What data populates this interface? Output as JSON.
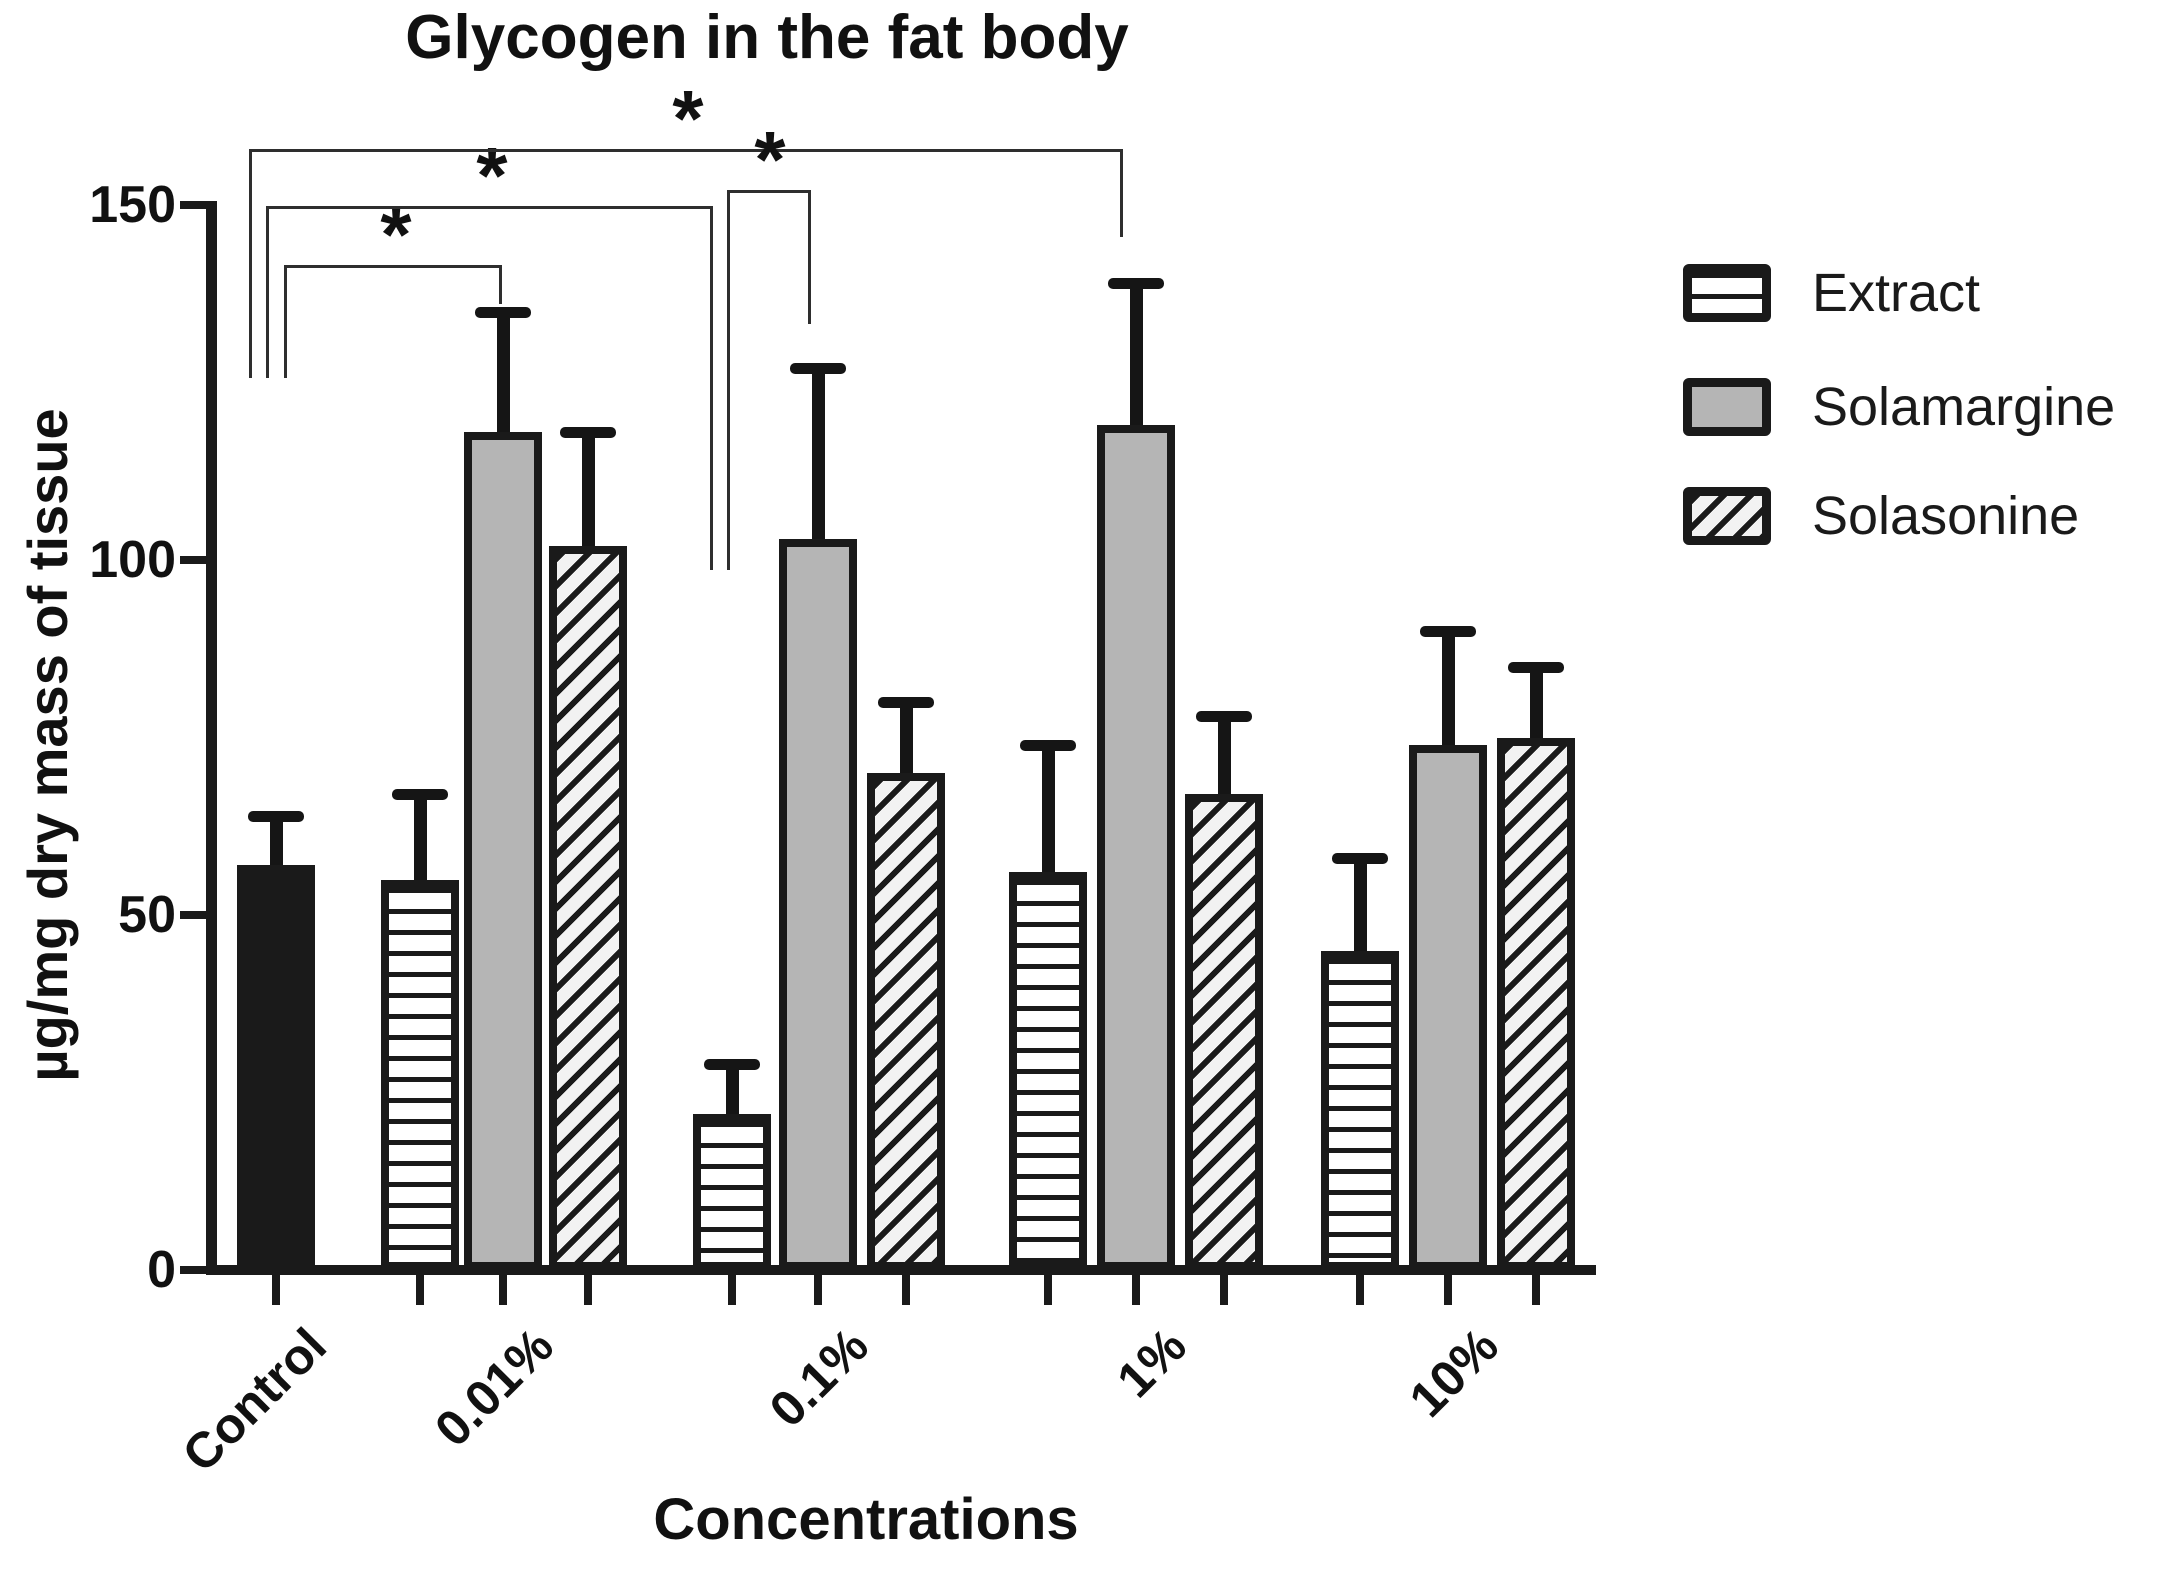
{
  "chart_data": {
    "type": "bar",
    "title": "Glycogen in the fat body",
    "xlabel": "Concentrations",
    "ylabel": "µg/mg dry mass of tissue",
    "ylim": [
      0,
      150
    ],
    "grid": false,
    "legend_position": "right",
    "yticks": [
      {
        "value": 150,
        "label": "150"
      },
      {
        "value": 100,
        "label": "100"
      },
      {
        "value": 50,
        "label": "50"
      },
      {
        "value": 0,
        "label": "0"
      }
    ],
    "categories": [
      "Control",
      "0.01%",
      "0.1%",
      "1%",
      "10%"
    ],
    "control": {
      "label": "Control",
      "value": 57,
      "err_top": 64,
      "pattern": "solid-black"
    },
    "series": [
      {
        "name": "Extract",
        "pattern": "horizontal-lines",
        "values": [
          55,
          22,
          56,
          45
        ],
        "err_top": [
          67,
          29,
          74,
          58
        ]
      },
      {
        "name": "Solamargine",
        "pattern": "solid-gray",
        "values": [
          118,
          103,
          119,
          74
        ],
        "err_top": [
          135,
          127,
          139,
          90
        ]
      },
      {
        "name": "Solasonine",
        "pattern": "diagonal-hatch",
        "values": [
          102,
          70,
          67,
          75
        ],
        "err_top": [
          118,
          80,
          78,
          85
        ]
      }
    ],
    "significance": [
      {
        "label": "*",
        "between": [
          "Control",
          "0.01% Solamargine"
        ]
      },
      {
        "label": "*",
        "between": [
          "Control",
          "0.1% Extract"
        ]
      },
      {
        "label": "*",
        "between": [
          "Control",
          "1% Solamargine"
        ]
      },
      {
        "label": "*",
        "between": [
          "0.1% Extract",
          "0.1% Solamargine"
        ]
      }
    ],
    "colors": {
      "bar_outline": "#1a1a1a",
      "solamargine_fill": "#b5b5b5",
      "background": "#ffffff"
    }
  }
}
